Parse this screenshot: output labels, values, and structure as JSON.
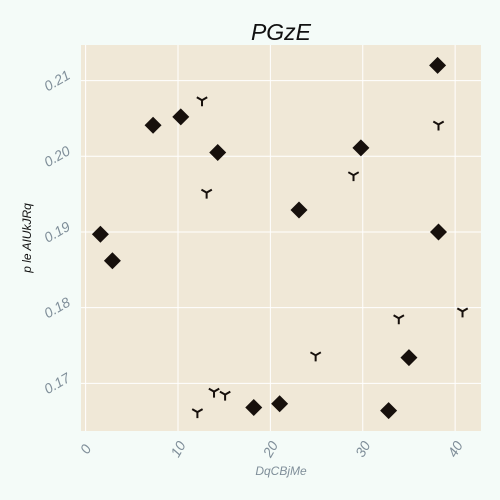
{
  "chart_data": {
    "type": "scatter",
    "title": "PGzE",
    "xlabel": "DqCBjMe",
    "ylabel": "p le AIUkJRq",
    "xlim": [
      -0.5,
      42.8
    ],
    "ylim": [
      0.1637,
      0.2147
    ],
    "xticks": [
      0,
      10,
      20,
      30,
      40
    ],
    "xtick_labels": [
      "0",
      "10",
      "20",
      "30",
      "40"
    ],
    "yticks": [
      0.17,
      0.18,
      0.19,
      0.2,
      0.21
    ],
    "ytick_labels": [
      "0.17",
      "0.18",
      "0.19",
      "0.20",
      "0.21"
    ],
    "grid": true,
    "colors": {
      "page_background": "#f4fbf8",
      "plot_background": "#f0e8d7",
      "grid": "#ffffff",
      "marker": "#17100c",
      "xlabel": "#7f8e99",
      "ylabel": "#111111",
      "tick_label": "#7f8e99"
    },
    "series": [
      {
        "marker": "diamond",
        "points": [
          [
            1.6,
            0.1897
          ],
          [
            2.9,
            0.1862
          ],
          [
            7.3,
            0.2041
          ],
          [
            10.3,
            0.2052
          ],
          [
            14.3,
            0.2005
          ],
          [
            18.2,
            0.1668
          ],
          [
            21.0,
            0.1673
          ],
          [
            23.1,
            0.1929
          ],
          [
            29.8,
            0.2011
          ],
          [
            32.8,
            0.1664
          ],
          [
            35.0,
            0.1734
          ],
          [
            38.1,
            0.212
          ],
          [
            38.2,
            0.19
          ]
        ]
      },
      {
        "marker": "tri-down",
        "points": [
          [
            12.1,
            0.1662
          ],
          [
            12.6,
            0.2074
          ],
          [
            13.1,
            0.1952
          ],
          [
            13.9,
            0.1689
          ],
          [
            15.1,
            0.1685
          ],
          [
            24.9,
            0.1737
          ],
          [
            29.0,
            0.1975
          ],
          [
            33.9,
            0.1786
          ],
          [
            38.2,
            0.2042
          ],
          [
            40.8,
            0.1795
          ]
        ]
      }
    ]
  }
}
